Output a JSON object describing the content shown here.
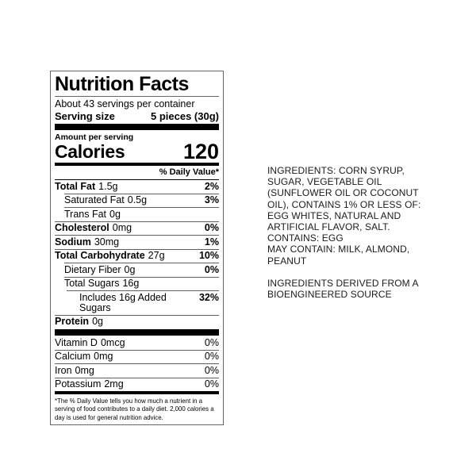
{
  "label": {
    "title": "Nutrition Facts",
    "servings_per_container": "About 43 servings per container",
    "serving_size_label": "Serving size",
    "serving_size_value": "5 pieces (30g)",
    "amount_per_serving": "Amount per serving",
    "calories_label": "Calories",
    "calories_value": "120",
    "daily_value_header": "% Daily Value*",
    "nutrients": [
      {
        "name": "Total Fat",
        "amount": "1.5g",
        "dv": "2%"
      },
      {
        "name": "Saturated Fat",
        "amount": "0.5g",
        "dv": "3%"
      },
      {
        "name": "Trans Fat",
        "amount": "0g",
        "dv": ""
      },
      {
        "name": "Cholesterol",
        "amount": "0mg",
        "dv": "0%"
      },
      {
        "name": "Sodium",
        "amount": "30mg",
        "dv": "1%"
      },
      {
        "name": "Total Carbohydrate",
        "amount": "27g",
        "dv": "10%"
      },
      {
        "name": "Dietary Fiber",
        "amount": "0g",
        "dv": "0%"
      },
      {
        "name": "Total Sugars",
        "amount": "16g",
        "dv": ""
      },
      {
        "name": "Includes 16g Added Sugars",
        "amount": "",
        "dv": "32%"
      },
      {
        "name": "Protein",
        "amount": "0g",
        "dv": ""
      }
    ],
    "vitamins": [
      {
        "name": "Vitamin D",
        "amount": "0mcg",
        "dv": "0%"
      },
      {
        "name": "Calcium",
        "amount": "0mg",
        "dv": "0%"
      },
      {
        "name": "Iron",
        "amount": "0mg",
        "dv": "0%"
      },
      {
        "name": "Potassium",
        "amount": "2mg",
        "dv": "0%"
      }
    ],
    "footnote": "*The % Daily Value tells you how much a nutrient in a\nserving of food contributes to a daily diet. 2,000 calories a\nday is used for general nutrition advice."
  },
  "ingredients_panel": {
    "ingredients": "INGREDIENTS: CORN SYRUP,\nSUGAR, VEGETABLE OIL\n(SUNFLOWER OIL OR COCONUT\nOIL), CONTAINS 1% OR LESS OF:\nEGG WHITES, NATURAL AND\nARTIFICIAL FLAVOR, SALT.\nCONTAINS: EGG\nMAY CONTAIN: MILK, ALMOND,\nPEANUT",
    "bioengineered": "INGREDIENTS DERIVED FROM A\nBIOENGINEERED SOURCE"
  },
  "colors": {
    "text": "#000000",
    "hairline": "#606060",
    "bar": "#000000",
    "background": "#ffffff"
  }
}
